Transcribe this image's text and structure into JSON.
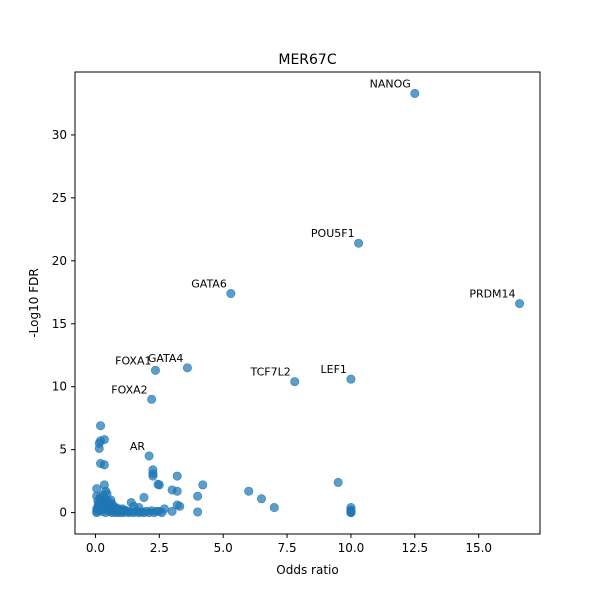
{
  "chart_data": {
    "type": "scatter",
    "title": "MER67C",
    "xlabel": "Odds ratio",
    "ylabel": "-Log10 FDR",
    "xlim": [
      -0.8,
      17.4
    ],
    "ylim": [
      -1.7,
      35.0
    ],
    "xticks": [
      0,
      2.5,
      5,
      7.5,
      10,
      12.5,
      15
    ],
    "xtick_labels": [
      "0.0",
      "2.5",
      "5.0",
      "7.5",
      "10.0",
      "12.5",
      "15.0"
    ],
    "yticks": [
      0,
      5,
      10,
      15,
      20,
      25,
      30
    ],
    "ytick_labels": [
      "0",
      "5",
      "10",
      "15",
      "20",
      "25",
      "30"
    ],
    "grid": false,
    "point_color": "#1f77b4",
    "points": [
      [
        12.5,
        33.3
      ],
      [
        10.3,
        21.4
      ],
      [
        16.6,
        16.6
      ],
      [
        5.3,
        17.4
      ],
      [
        3.6,
        11.5
      ],
      [
        2.35,
        11.3
      ],
      [
        2.2,
        9.0
      ],
      [
        7.8,
        10.4
      ],
      [
        10.0,
        10.6
      ],
      [
        2.1,
        4.5
      ],
      [
        0.2,
        6.9
      ],
      [
        0.15,
        5.5
      ],
      [
        0.2,
        5.7
      ],
      [
        0.35,
        5.8
      ],
      [
        0.15,
        5.1
      ],
      [
        0.2,
        3.9
      ],
      [
        0.35,
        3.8
      ],
      [
        2.25,
        3.4
      ],
      [
        2.25,
        3.1
      ],
      [
        2.25,
        2.9
      ],
      [
        2.5,
        2.2
      ],
      [
        2.45,
        2.25
      ],
      [
        3.2,
        2.9
      ],
      [
        4.2,
        2.2
      ],
      [
        3.0,
        1.8
      ],
      [
        3.2,
        1.7
      ],
      [
        4.0,
        1.3
      ],
      [
        6.0,
        1.7
      ],
      [
        6.5,
        1.1
      ],
      [
        7.0,
        0.4
      ],
      [
        9.5,
        2.4
      ],
      [
        3.2,
        0.6
      ],
      [
        3.3,
        0.5
      ],
      [
        3.0,
        0.1
      ],
      [
        4.0,
        0.05
      ],
      [
        2.7,
        0.3
      ],
      [
        2.5,
        0.1
      ],
      [
        1.9,
        1.2
      ],
      [
        1.4,
        0.8
      ],
      [
        1.7,
        0.4
      ],
      [
        1.5,
        0.5
      ],
      [
        10.0,
        0.4
      ],
      [
        10.0,
        0.2
      ],
      [
        10.0,
        0.1
      ],
      [
        10.0,
        0.0
      ],
      [
        10.0,
        0.0
      ],
      [
        0.05,
        1.9
      ],
      [
        0.05,
        1.3
      ],
      [
        0.1,
        0.9
      ],
      [
        0.2,
        1.1
      ],
      [
        0.25,
        0.8
      ],
      [
        0.3,
        1.4
      ],
      [
        0.35,
        2.2
      ],
      [
        0.4,
        1.7
      ],
      [
        0.4,
        1.1
      ],
      [
        0.45,
        1.5
      ],
      [
        0.5,
        0.9
      ],
      [
        0.55,
        0.6
      ],
      [
        0.6,
        1.0
      ],
      [
        0.65,
        0.7
      ],
      [
        0.7,
        0.5
      ],
      [
        0.8,
        0.4
      ],
      [
        0.9,
        0.3
      ],
      [
        1.0,
        0.2
      ],
      [
        0.05,
        0.3
      ],
      [
        0.05,
        0.1
      ],
      [
        0.05,
        0.0
      ],
      [
        0.1,
        0.5
      ],
      [
        0.15,
        0.2
      ],
      [
        0.2,
        0.4
      ],
      [
        0.25,
        0.1
      ],
      [
        0.3,
        0.6
      ],
      [
        0.35,
        0.3
      ],
      [
        0.4,
        0.0
      ],
      [
        0.45,
        0.4
      ],
      [
        0.5,
        0.2
      ],
      [
        0.55,
        0.1
      ],
      [
        0.6,
        0.3
      ],
      [
        0.65,
        0.0
      ],
      [
        0.7,
        0.2
      ],
      [
        0.75,
        0.1
      ],
      [
        0.8,
        0.0
      ],
      [
        0.85,
        0.2
      ],
      [
        0.9,
        0.1
      ],
      [
        0.95,
        0.0
      ],
      [
        1.0,
        0.05
      ],
      [
        1.1,
        0.0
      ],
      [
        1.2,
        0.1
      ],
      [
        1.3,
        0.0
      ],
      [
        1.4,
        0.05
      ],
      [
        1.5,
        0.0
      ],
      [
        1.6,
        0.1
      ],
      [
        1.7,
        0.0
      ],
      [
        1.8,
        0.05
      ],
      [
        1.9,
        0.0
      ],
      [
        2.0,
        0.1
      ],
      [
        2.1,
        0.0
      ],
      [
        2.2,
        0.15
      ],
      [
        2.3,
        0.0
      ],
      [
        2.4,
        0.1
      ],
      [
        2.6,
        0.0
      ],
      [
        1.05,
        0.3
      ],
      [
        1.15,
        0.2
      ],
      [
        1.25,
        0.1
      ],
      [
        0.12,
        0.7
      ],
      [
        0.28,
        0.9
      ],
      [
        0.18,
        1.2
      ],
      [
        0.22,
        0.6
      ],
      [
        0.38,
        0.5
      ],
      [
        0.48,
        0.7
      ],
      [
        0.58,
        0.4
      ],
      [
        0.68,
        0.3
      ]
    ],
    "annotations": [
      {
        "text": "NANOG",
        "x": 12.5,
        "y": 33.3
      },
      {
        "text": "POU5F1",
        "x": 10.3,
        "y": 21.4
      },
      {
        "text": "PRDM14",
        "x": 16.6,
        "y": 16.6
      },
      {
        "text": "GATA6",
        "x": 5.3,
        "y": 17.4
      },
      {
        "text": "GATA4",
        "x": 3.6,
        "y": 11.5
      },
      {
        "text": "FOXA1",
        "x": 2.35,
        "y": 11.3
      },
      {
        "text": "FOXA2",
        "x": 2.2,
        "y": 9.0
      },
      {
        "text": "TCF7L2",
        "x": 7.8,
        "y": 10.4
      },
      {
        "text": "LEF1",
        "x": 10.0,
        "y": 10.6
      },
      {
        "text": "AR",
        "x": 2.1,
        "y": 4.5
      }
    ]
  }
}
